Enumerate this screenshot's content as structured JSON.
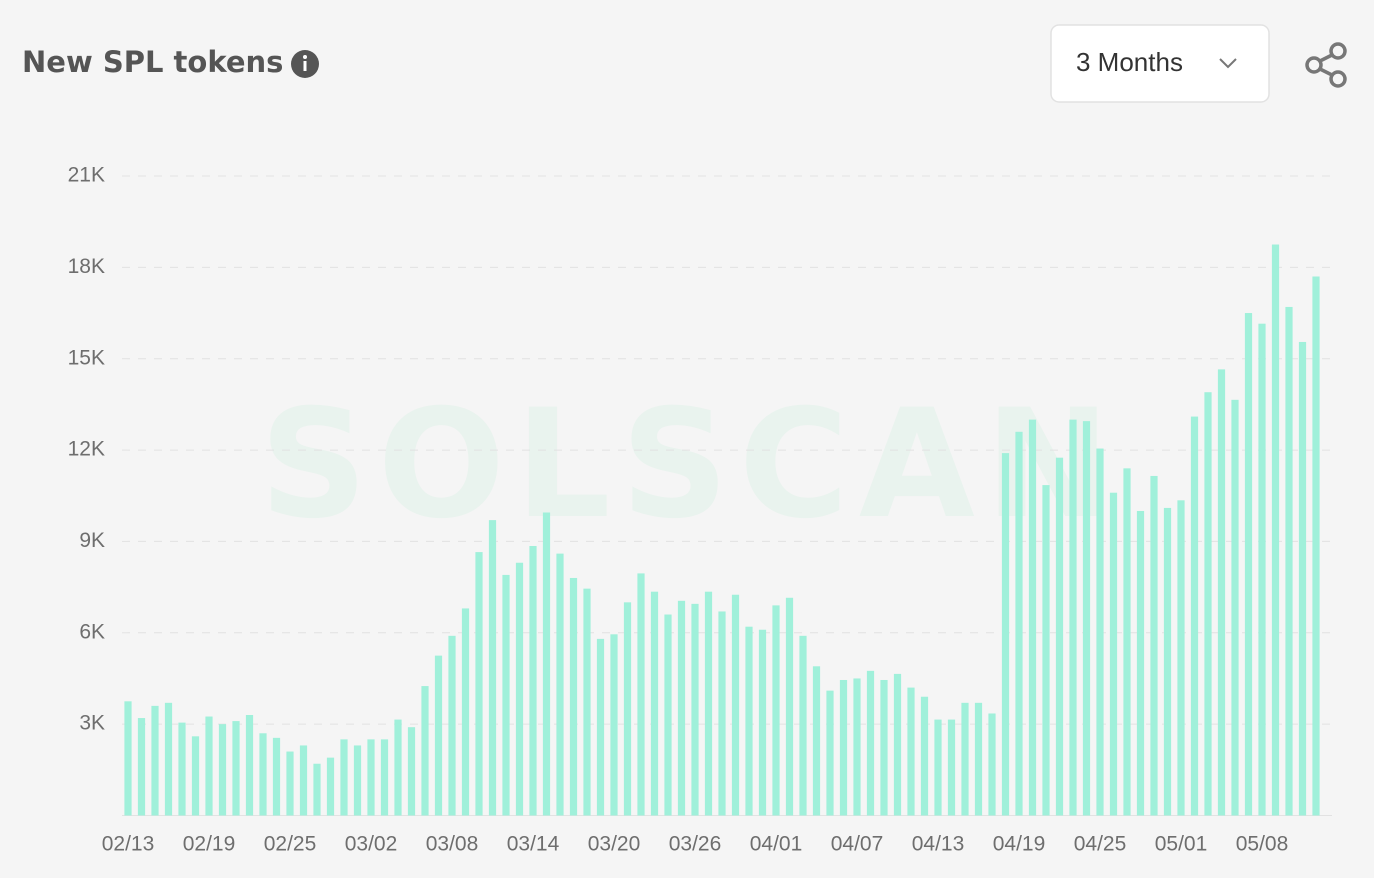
{
  "chart_data": {
    "type": "bar",
    "title": "New SPL tokens",
    "categories": [
      "02/13",
      null,
      null,
      null,
      null,
      null,
      "02/19",
      null,
      null,
      null,
      null,
      null,
      "02/25",
      null,
      null,
      null,
      null,
      null,
      "03/02",
      null,
      null,
      null,
      null,
      null,
      "03/08",
      null,
      null,
      null,
      null,
      null,
      "03/14",
      null,
      null,
      null,
      null,
      null,
      "03/20",
      null,
      null,
      null,
      null,
      null,
      "03/26",
      null,
      null,
      null,
      null,
      null,
      "04/01",
      null,
      null,
      null,
      null,
      null,
      "04/07",
      null,
      null,
      null,
      null,
      null,
      "04/13",
      null,
      null,
      null,
      null,
      null,
      "04/19",
      null,
      null,
      null,
      null,
      null,
      "04/25",
      null,
      null,
      null,
      null,
      null,
      "05/01",
      null,
      null,
      null,
      null,
      null,
      "05/08",
      null,
      null,
      null,
      null
    ],
    "values": [
      3750,
      3200,
      3600,
      3700,
      3050,
      2600,
      3250,
      3000,
      3100,
      3300,
      2700,
      2550,
      2100,
      2300,
      1700,
      1900,
      2500,
      2300,
      2500,
      2500,
      3150,
      2900,
      4250,
      5250,
      5900,
      6800,
      8650,
      9700,
      7900,
      8300,
      8850,
      9950,
      8600,
      7800,
      7450,
      5800,
      5950,
      7000,
      7950,
      7350,
      6600,
      7050,
      6950,
      7350,
      6700,
      7250,
      6200,
      6100,
      6900,
      7150,
      5900,
      4900,
      4100,
      4450,
      4500,
      4750,
      4450,
      4650,
      4200,
      3900,
      3150,
      3150,
      3700,
      3700,
      3350,
      11900,
      12600,
      13000,
      10850,
      11750,
      13000,
      12950,
      12050,
      10600,
      11400,
      10000,
      11150,
      10100,
      10350,
      13100,
      13900,
      14650,
      13650,
      16500,
      16150,
      18750,
      16700,
      15550,
      17700
    ],
    "color": "#a0f0da",
    "ylim": [
      0,
      21000
    ],
    "yticks": [
      {
        "value": 3000,
        "label": "3K"
      },
      {
        "value": 6000,
        "label": "6K"
      },
      {
        "value": 9000,
        "label": "9K"
      },
      {
        "value": 12000,
        "label": "12K"
      },
      {
        "value": 15000,
        "label": "15K"
      },
      {
        "value": 18000,
        "label": "18K"
      },
      {
        "value": 21000,
        "label": "21K"
      }
    ],
    "grid": true
  },
  "controls": {
    "range": "3 Months"
  },
  "watermark": "SOLSCAN"
}
